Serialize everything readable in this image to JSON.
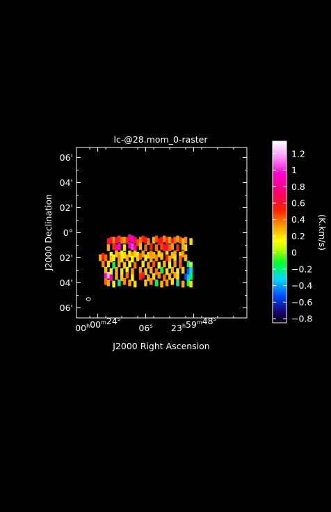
{
  "chart_data": {
    "type": "heatmap",
    "title": "lc-@28.mom_0-raster",
    "xlabel": "J2000 Right Ascension",
    "ylabel": "J2000 Declination",
    "x_ticks": [
      {
        "label": "00h00m24s",
        "h": "00",
        "m": "00",
        "s": "24",
        "ra_s": -36
      },
      {
        "label": "06s",
        "s": "06",
        "ra_s": -54
      },
      {
        "label": "23h59m48s",
        "h": "23",
        "m": "59",
        "s": "48",
        "ra_s": -72
      }
    ],
    "x_range_ra_s": [
      -28,
      -92
    ],
    "y_ticks": [
      {
        "label": "06'",
        "dec_arcmin": 6
      },
      {
        "label": "04'",
        "dec_arcmin": 4
      },
      {
        "label": "02'",
        "dec_arcmin": 2
      },
      {
        "label": "0°",
        "dec_arcmin": 0
      },
      {
        "label": "02'",
        "dec_arcmin": -2
      },
      {
        "label": "04'",
        "dec_arcmin": -4
      },
      {
        "label": "06'",
        "dec_arcmin": -6
      }
    ],
    "y_range_arcmin": [
      -6.8,
      6.8
    ],
    "colorbar": {
      "label": "(K.km/s)",
      "range": [
        -0.85,
        1.35
      ],
      "ticks": [
        1.2,
        1,
        0.8,
        0.6,
        0.4,
        0.2,
        0,
        -0.2,
        -0.4,
        -0.6,
        -0.8
      ],
      "tick_labels": [
        "1.2",
        "1",
        "0.8",
        "0.6",
        "0.4",
        "0.2",
        "0",
        "−0.2",
        "−0.4",
        "−0.6",
        "−0.8"
      ]
    },
    "beam": {
      "ra_s": -32.5,
      "dec_arcmin": -5.3
    },
    "grid": false,
    "legend": "right",
    "cells": [
      [
        -40,
        -0.7,
        0.62
      ],
      [
        -41,
        -0.6,
        0.55
      ],
      [
        -42,
        -0.6,
        0.35
      ],
      [
        -43,
        -0.6,
        0.75
      ],
      [
        -44,
        -0.5,
        0.48
      ],
      [
        -45,
        -0.6,
        0.4
      ],
      [
        -46,
        -0.6,
        0.3
      ],
      [
        -47,
        -0.6,
        0.5
      ],
      [
        -48,
        -0.4,
        0.85
      ],
      [
        -49,
        -0.5,
        0.92
      ],
      [
        -50,
        -0.6,
        0.7
      ],
      [
        -51,
        -0.8,
        0.45
      ],
      [
        -52,
        -0.6,
        0.38
      ],
      [
        -53,
        -0.5,
        0.52
      ],
      [
        -54,
        -0.6,
        0.6
      ],
      [
        -55,
        -0.7,
        0.35
      ],
      [
        -57,
        -0.6,
        0.28
      ],
      [
        -58,
        -0.5,
        0.44
      ],
      [
        -59,
        -0.7,
        0.55
      ],
      [
        -60,
        -0.6,
        0.62
      ],
      [
        -61,
        -0.5,
        0.35
      ],
      [
        -62,
        -0.6,
        0.48
      ],
      [
        -63,
        -0.6,
        0.3
      ],
      [
        -64,
        -0.7,
        0.55
      ],
      [
        -65,
        -0.6,
        0.4
      ],
      [
        -66,
        -0.5,
        0.32
      ],
      [
        -67,
        -0.6,
        0.45
      ],
      [
        -68,
        -0.7,
        0.25
      ],
      [
        -69,
        -0.6,
        0.35
      ],
      [
        -71,
        -0.7,
        0.2
      ],
      [
        -40,
        -1.2,
        0.3
      ],
      [
        -42,
        -1.1,
        0.5
      ],
      [
        -43,
        -1.2,
        0.82
      ],
      [
        -44,
        -1.1,
        0.95
      ],
      [
        -46,
        -1.2,
        0.2
      ],
      [
        -48,
        -1.0,
        0.88
      ],
      [
        -49,
        -1.1,
        1.05
      ],
      [
        -50,
        -1.2,
        0.78
      ],
      [
        -52,
        -1.1,
        0.25
      ],
      [
        -54,
        -1.2,
        0.4
      ],
      [
        -56,
        -1.1,
        0.52
      ],
      [
        -58,
        -1.2,
        0.38
      ],
      [
        -60,
        -1.1,
        0.45
      ],
      [
        -61,
        -1.2,
        0.58
      ],
      [
        -62,
        -1.1,
        0.6
      ],
      [
        -63,
        -1.2,
        0.42
      ],
      [
        -64,
        -1.1,
        0.33
      ],
      [
        -66,
        -1.2,
        0.5
      ],
      [
        -68,
        -1.1,
        0.3
      ],
      [
        -69,
        -1.2,
        0.22
      ],
      [
        -41,
        -1.8,
        0.15
      ],
      [
        -43,
        -1.7,
        0.28
      ],
      [
        -44,
        -1.8,
        0.3
      ],
      [
        -45,
        -1.7,
        0.12
      ],
      [
        -46,
        -1.8,
        0.2
      ],
      [
        -48,
        -1.7,
        0.18
      ],
      [
        -49,
        -1.8,
        0.35
      ],
      [
        -50,
        -1.7,
        0.22
      ],
      [
        -51,
        -1.8,
        0.14
      ],
      [
        -53,
        -1.7,
        0.3
      ],
      [
        -55,
        -1.8,
        0.25
      ],
      [
        -56,
        -1.7,
        0.35
      ],
      [
        -57,
        -1.8,
        0.28
      ],
      [
        -59,
        -1.7,
        0.2
      ],
      [
        -60,
        -1.8,
        0.42
      ],
      [
        -62,
        -1.7,
        0.18
      ],
      [
        -64,
        -1.8,
        0.26
      ],
      [
        -65,
        -1.7,
        0.3
      ],
      [
        -67,
        -1.8,
        0.22
      ],
      [
        -68,
        -1.7,
        0.35
      ],
      [
        -37,
        -2.0,
        0.3
      ],
      [
        -38,
        -1.9,
        0.55
      ],
      [
        -39,
        -2.0,
        0.4
      ],
      [
        -41,
        -2.1,
        0.25
      ],
      [
        -42,
        -2.0,
        0.12
      ],
      [
        -44,
        -2.0,
        0.35
      ],
      [
        -45,
        -2.1,
        0.2
      ],
      [
        -47,
        -2.0,
        0.3
      ],
      [
        -49,
        -2.1,
        0.15
      ],
      [
        -51,
        -2.0,
        0.22
      ],
      [
        -52,
        -1.9,
        0.42
      ],
      [
        -54,
        -2.0,
        0.18
      ],
      [
        -56,
        -2.1,
        0.3
      ],
      [
        -58,
        -2.0,
        0.35
      ],
      [
        -60,
        -1.9,
        0.25
      ],
      [
        -62,
        -2.0,
        0.55
      ],
      [
        -63,
        -2.1,
        0.3
      ],
      [
        -65,
        -2.0,
        0.2
      ],
      [
        -67,
        -2.1,
        0.4
      ],
      [
        -69,
        -2.0,
        0.28
      ],
      [
        -38,
        -2.5,
        0.35
      ],
      [
        -40,
        -2.5,
        0.2
      ],
      [
        -42,
        -2.6,
        -0.15
      ],
      [
        -44,
        -2.5,
        0.3
      ],
      [
        -46,
        -2.6,
        0.25
      ],
      [
        -48,
        -2.5,
        0.15
      ],
      [
        -50,
        -2.6,
        0.38
      ],
      [
        -53,
        -2.5,
        0.2
      ],
      [
        -55,
        -2.6,
        0.32
      ],
      [
        -57,
        -2.5,
        0.45
      ],
      [
        -59,
        -2.6,
        0.15
      ],
      [
        -61,
        -2.5,
        0.28
      ],
      [
        -63,
        -2.6,
        0.12
      ],
      [
        -65,
        -2.5,
        0.35
      ],
      [
        -67,
        -2.6,
        0.42
      ],
      [
        -70,
        -2.5,
        -0.22
      ],
      [
        -71,
        -2.6,
        0.1
      ],
      [
        -39,
        -3.0,
        0.25
      ],
      [
        -41,
        -3.1,
        0.1
      ],
      [
        -43,
        -3.0,
        0.3
      ],
      [
        -45,
        -3.1,
        0.2
      ],
      [
        -47,
        -3.0,
        0.15
      ],
      [
        -49,
        -3.1,
        0.3
      ],
      [
        -52,
        -3.0,
        0.35
      ],
      [
        -54,
        -3.1,
        0.22
      ],
      [
        -56,
        -3.0,
        0.28
      ],
      [
        -58,
        -3.1,
        0.4
      ],
      [
        -60,
        -3.0,
        -0.15
      ],
      [
        -62,
        -3.1,
        0.2
      ],
      [
        -64,
        -3.0,
        0.3
      ],
      [
        -66,
        -3.1,
        0.15
      ],
      [
        -68,
        -3.0,
        0.22
      ],
      [
        -70,
        -3.1,
        -0.5
      ],
      [
        -71,
        -3.0,
        -0.3
      ],
      [
        -39,
        -3.5,
        0.95
      ],
      [
        -40,
        -3.4,
        1.2
      ],
      [
        -41,
        -3.6,
        0.85
      ],
      [
        -43,
        -3.5,
        0.3
      ],
      [
        -45,
        -3.6,
        0.25
      ],
      [
        -47,
        -3.4,
        0.4
      ],
      [
        -49,
        -3.6,
        0.15
      ],
      [
        -52,
        -3.5,
        0.5
      ],
      [
        -53,
        -3.4,
        0.62
      ],
      [
        -55,
        -3.6,
        0.3
      ],
      [
        -57,
        -3.5,
        0.22
      ],
      [
        -59,
        -3.4,
        0.35
      ],
      [
        -61,
        -3.6,
        0.4
      ],
      [
        -63,
        -3.5,
        0.28
      ],
      [
        -65,
        -3.4,
        0.32
      ],
      [
        -66,
        -3.5,
        0.2
      ],
      [
        -69,
        -3.5,
        -0.55
      ],
      [
        -70,
        -3.6,
        -0.35
      ],
      [
        -71,
        -3.5,
        -0.15
      ],
      [
        -39,
        -3.9,
        0.4
      ],
      [
        -40,
        -4.0,
        0.3
      ],
      [
        -42,
        -4.1,
        0.15
      ],
      [
        -44,
        -4.0,
        -0.2
      ],
      [
        -46,
        -3.9,
        0.35
      ],
      [
        -48,
        -4.0,
        0.3
      ],
      [
        -50,
        -4.1,
        0.2
      ],
      [
        -54,
        -4.0,
        0.25
      ],
      [
        -56,
        -3.9,
        0.35
      ],
      [
        -58,
        -4.0,
        -0.15
      ],
      [
        -60,
        -4.1,
        0.28
      ],
      [
        -62,
        -4.0,
        0.32
      ],
      [
        -64,
        -3.9,
        0.2
      ],
      [
        -66,
        -4.0,
        -0.25
      ],
      [
        -68,
        -4.1,
        0.3
      ],
      [
        -70,
        -4.0,
        -0.1
      ],
      [
        -71,
        -4.1,
        0.2
      ]
    ]
  }
}
